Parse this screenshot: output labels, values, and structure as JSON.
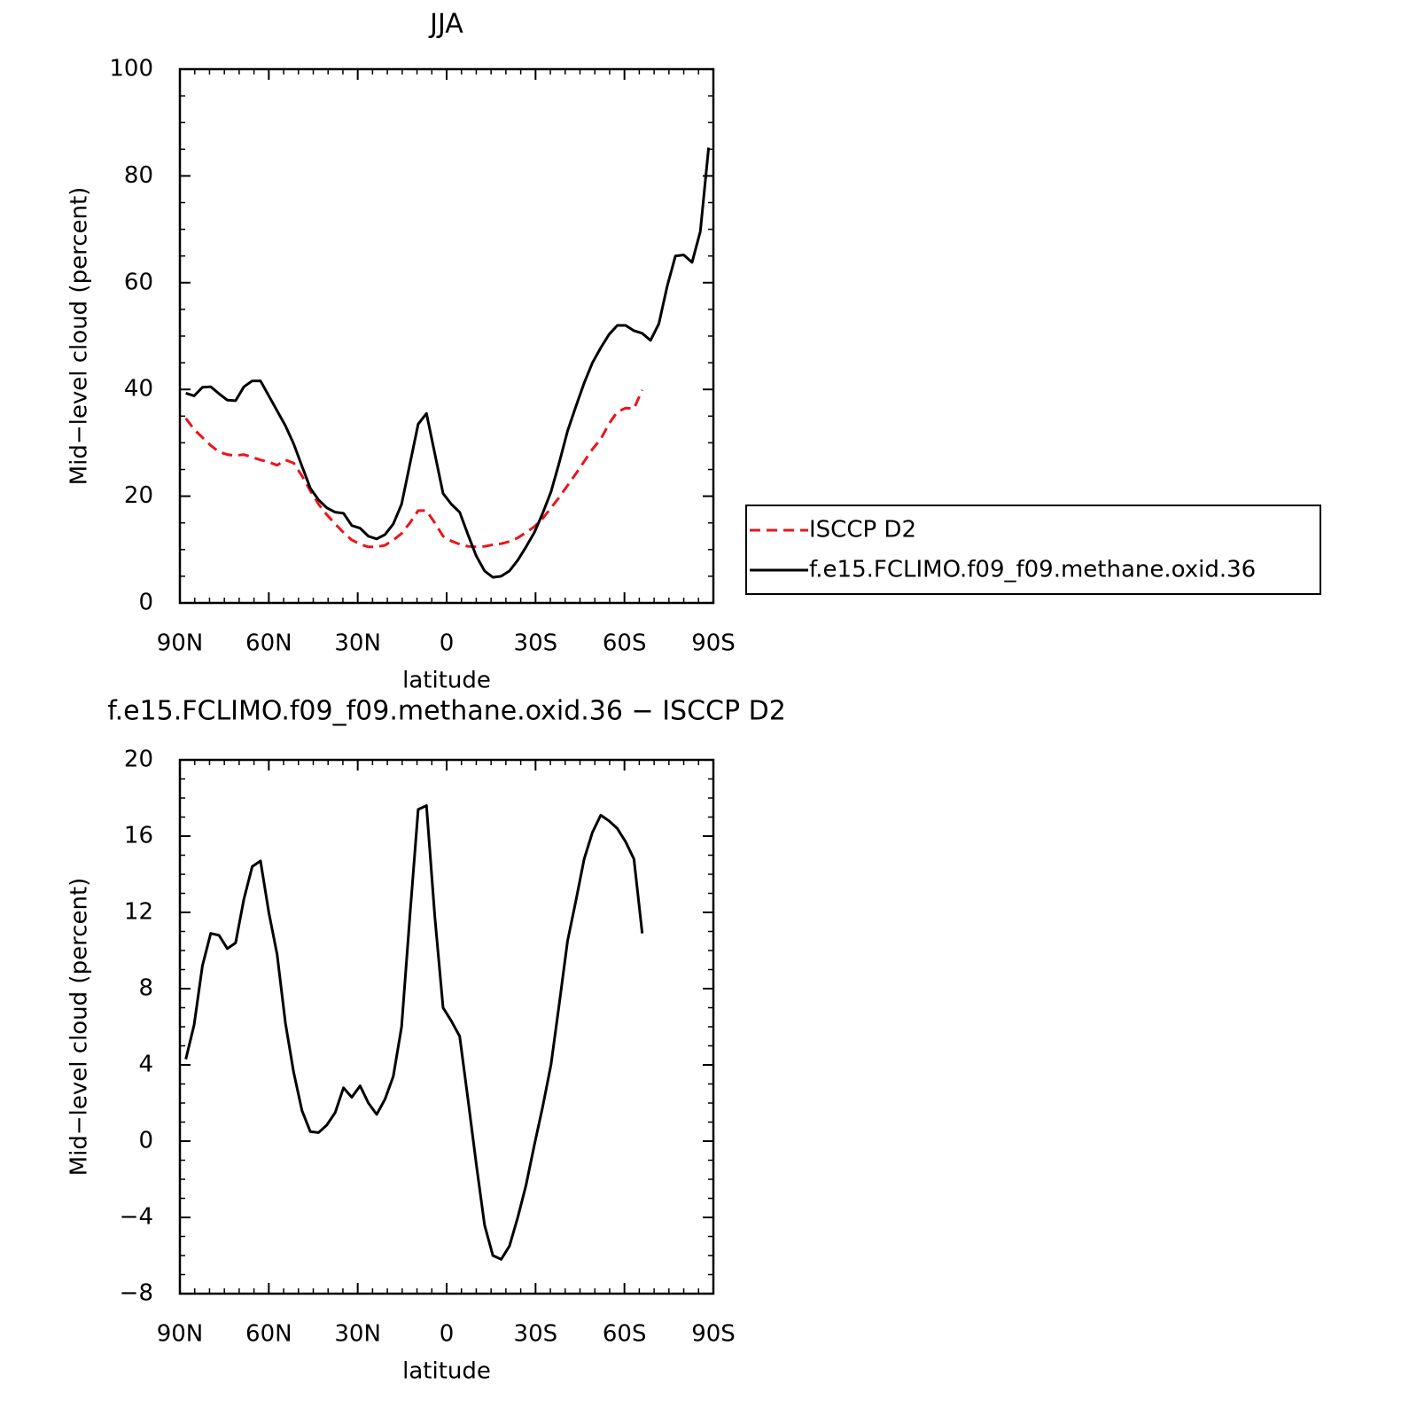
{
  "chart_data": [
    {
      "type": "line",
      "title": "JJA",
      "xlabel": "latitude",
      "ylabel": "Mid−level cloud (percent)",
      "x": [
        88,
        85.2,
        82.4,
        79.6,
        76.8,
        74,
        71.2,
        68.4,
        65.6,
        62.8,
        60,
        57.2,
        54.4,
        51.6,
        48.8,
        46,
        43.2,
        40.4,
        37.6,
        34.8,
        32,
        29.2,
        26.4,
        23.6,
        20.8,
        18,
        15.2,
        12.4,
        9.6,
        6.8,
        4,
        1.2,
        -1.6,
        -4.4,
        -7.2,
        -10,
        -12.8,
        -15.6,
        -18.4,
        -21.2,
        -24,
        -26.8,
        -29.6,
        -32.4,
        -35.2,
        -38,
        -40.8,
        -43.6,
        -46.4,
        -49.2,
        -52,
        -54.8,
        -57.6,
        -60.4,
        -63.2,
        -66,
        -68.8,
        -71.6,
        -74.4,
        -77.2,
        -80,
        -82.8,
        -85.6,
        -88.4
      ],
      "series": [
        {
          "name": "ISCCP D2",
          "color": "#e8161b",
          "linestyle": "dashed",
          "values": [
            34.6,
            32.5,
            31,
            29.5,
            28.3,
            27.8,
            27.6,
            27.8,
            27.3,
            26.8,
            26.4,
            25.8,
            26.8,
            26.2,
            23.8,
            21,
            18.5,
            16.5,
            14.8,
            13.2,
            11.8,
            11,
            10.5,
            10.5,
            10.8,
            11.8,
            13,
            15,
            17.3,
            17.3,
            15,
            12.5,
            11.6,
            11,
            10.6,
            10.5,
            10.6,
            10.9,
            11.1,
            11.5,
            12.2,
            13.2,
            14.3,
            15.8,
            17.8,
            19.8,
            22,
            24.2,
            26.5,
            28.8,
            30.7,
            33.6,
            35.8,
            36.5,
            36.4,
            39.9,
            null,
            null,
            null,
            null,
            null,
            null,
            null,
            null
          ]
        },
        {
          "name": "f.e15.FCLIMO.f09_f09.methane.oxid.36",
          "color": "#000000",
          "linestyle": "solid",
          "values": [
            39.3,
            38.8,
            40.4,
            40.5,
            39.2,
            38,
            37.9,
            40.5,
            41.6,
            41.6,
            38.8,
            36,
            33.2,
            29.8,
            25.6,
            21.5,
            19.3,
            17.8,
            17,
            16.8,
            14.5,
            14,
            12.5,
            12,
            12.8,
            14.8,
            18.5,
            26,
            33.5,
            35.5,
            28,
            20.5,
            18.5,
            17,
            12.8,
            8.8,
            6,
            4.8,
            5,
            6,
            8,
            10.5,
            13.2,
            16.8,
            20.8,
            26.3,
            32.2,
            36.8,
            41.2,
            45,
            47.8,
            50.3,
            52,
            52,
            51,
            50.5,
            49.2,
            52.3,
            59.3,
            65,
            65.2,
            63.8,
            69.6,
            85.3
          ]
        }
      ],
      "xlim": [
        90,
        -90
      ],
      "xticks": [
        {
          "value": 90,
          "label": "90N"
        },
        {
          "value": 60,
          "label": "60N"
        },
        {
          "value": 30,
          "label": "30N"
        },
        0,
        {
          "value": -30,
          "label": "30S"
        },
        {
          "value": -60,
          "label": "60S"
        },
        {
          "value": -90,
          "label": "90S"
        }
      ],
      "xminorticks": [
        85,
        80,
        75,
        70,
        65,
        55,
        50,
        45,
        40,
        35,
        25,
        20,
        15,
        10,
        5,
        -5,
        -10,
        -15,
        -20,
        -25,
        -35,
        -40,
        -45,
        -50,
        -55,
        -65,
        -70,
        -75,
        -80,
        -85
      ],
      "ylim": [
        0,
        100
      ],
      "yticks": [
        0,
        20,
        40,
        60,
        80,
        100
      ],
      "yminorticks": [
        5,
        10,
        15,
        25,
        30,
        35,
        45,
        50,
        55,
        65,
        70,
        75,
        85,
        90,
        95
      ],
      "legend": "right"
    },
    {
      "type": "line",
      "title": "f.e15.FCLIMO.f09_f09.methane.oxid.36 − ISCCP D2",
      "xlabel": "latitude",
      "ylabel": "Mid−level cloud (percent)",
      "x": [
        88,
        85.2,
        82.4,
        79.6,
        76.8,
        74,
        71.2,
        68.4,
        65.6,
        62.8,
        60,
        57.2,
        54.4,
        51.6,
        48.8,
        46,
        43.2,
        40.4,
        37.6,
        34.8,
        32,
        29.2,
        26.4,
        23.6,
        20.8,
        18,
        15.2,
        12.4,
        9.6,
        6.8,
        4,
        1.2,
        -1.6,
        -4.4,
        -7.2,
        -10,
        -12.8,
        -15.6,
        -18.4,
        -21.2,
        -24,
        -26.8,
        -29.6,
        -32.4,
        -35.2,
        -38,
        -40.8,
        -43.6,
        -46.4,
        -49.2,
        -52,
        -54.8,
        -57.6,
        -60.4,
        -63.2,
        -66
      ],
      "values": [
        4.3,
        6.1,
        9.2,
        10.9,
        10.8,
        10.1,
        10.4,
        12.7,
        14.4,
        14.7,
        12,
        9.8,
        6.2,
        3.6,
        1.6,
        0.5,
        0.45,
        0.85,
        1.5,
        2.8,
        2.3,
        2.9,
        2,
        1.4,
        2.2,
        3.4,
        6,
        11.8,
        17.4,
        17.6,
        11.8,
        7,
        6.3,
        5.5,
        2.2,
        -1.2,
        -4.4,
        -6,
        -6.2,
        -5.5,
        -4,
        -2.3,
        -0.2,
        1.8,
        4,
        7.2,
        10.5,
        12.6,
        14.8,
        16.2,
        17.1,
        16.8,
        16.4,
        15.7,
        14.8,
        10.9
      ],
      "color": "#000000",
      "xlim": [
        90,
        -90
      ],
      "xticks": [
        {
          "value": 90,
          "label": "90N"
        },
        {
          "value": 60,
          "label": "60N"
        },
        {
          "value": 30,
          "label": "30N"
        },
        0,
        {
          "value": -30,
          "label": "30S"
        },
        {
          "value": -60,
          "label": "60S"
        },
        {
          "value": -90,
          "label": "90S"
        }
      ],
      "xminorticks": [
        85,
        80,
        75,
        70,
        65,
        55,
        50,
        45,
        40,
        35,
        25,
        20,
        15,
        10,
        5,
        -5,
        -10,
        -15,
        -20,
        -25,
        -35,
        -40,
        -45,
        -50,
        -55,
        -65,
        -70,
        -75,
        -80,
        -85
      ],
      "ylim": [
        -8,
        20
      ],
      "yticks": [
        {
          "value": -8,
          "label": "−8"
        },
        {
          "value": -4,
          "label": "−4"
        },
        0,
        4,
        8,
        12,
        16,
        20
      ],
      "yminorticks": [
        -7,
        -6,
        -5,
        -3,
        -2,
        -1,
        1,
        2,
        3,
        5,
        6,
        7,
        9,
        10,
        11,
        13,
        14,
        15,
        17,
        18,
        19
      ]
    }
  ]
}
